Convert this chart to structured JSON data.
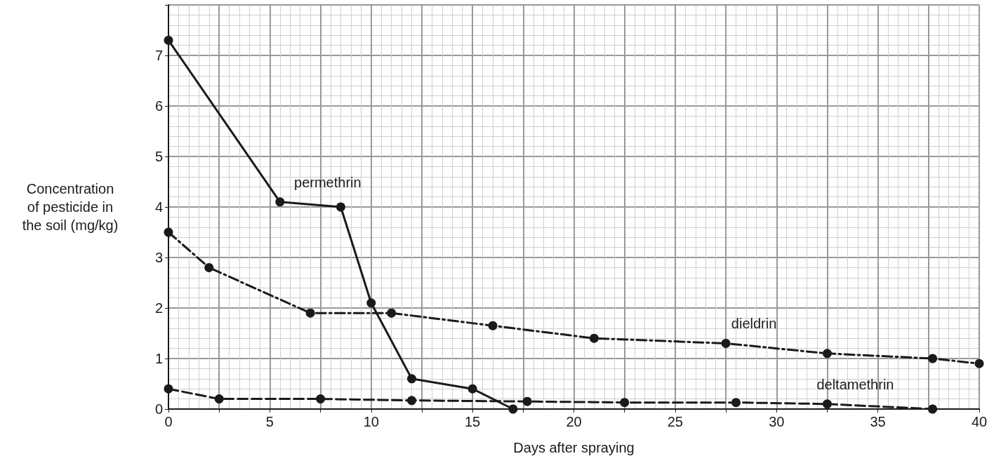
{
  "chart_data": {
    "type": "line",
    "xlabel": "Days after spraying",
    "ylabel": "Concentration\nof pesticide in\nthe soil (mg/kg)",
    "xlim": [
      0,
      40
    ],
    "xticks": [
      0,
      {
        "value": 2.5,
        "label": null
      },
      5,
      {
        "value": 7.5,
        "label": null
      },
      10,
      {
        "value": 12.5,
        "label": null
      },
      15,
      {
        "value": 17.5,
        "label": null
      },
      20,
      {
        "value": 22.5,
        "label": null
      },
      25,
      {
        "value": 27.5,
        "label": null
      },
      30,
      {
        "value": 32.5,
        "label": null
      },
      35,
      {
        "value": 37.5,
        "label": null
      },
      40
    ],
    "ylim": [
      0,
      8
    ],
    "yticks": [
      0,
      1,
      2,
      3,
      4,
      5,
      6,
      7,
      {
        "value": 8,
        "label": null
      }
    ],
    "grid": true,
    "marker": "circle",
    "series": [
      {
        "name": "permethrin",
        "color": "#1a1a1a",
        "line_style": "solid",
        "x": [
          0,
          5.5,
          8.5,
          10,
          12,
          15,
          17
        ],
        "values": [
          7.3,
          4.1,
          4.0,
          2.1,
          0.6,
          0.4,
          0
        ]
      },
      {
        "name": "dieldrin",
        "color": "#1a1a1a",
        "line_style": "dashdot",
        "x": [
          0,
          2,
          7,
          11,
          16,
          21,
          27.5,
          32.5,
          37.7,
          40
        ],
        "values": [
          3.5,
          2.8,
          1.9,
          1.9,
          1.65,
          1.4,
          1.3,
          1.1,
          1.0,
          0.9
        ]
      },
      {
        "name": "deltamethrin",
        "color": "#1a1a1a",
        "line_style": "dashed",
        "x": [
          0,
          2.5,
          7.5,
          12,
          17.7,
          22.5,
          28,
          32.5,
          37.7
        ],
        "values": [
          0.4,
          0.2,
          0.2,
          0.17,
          0.15,
          0.13,
          0.13,
          0.1,
          0
        ]
      }
    ]
  }
}
